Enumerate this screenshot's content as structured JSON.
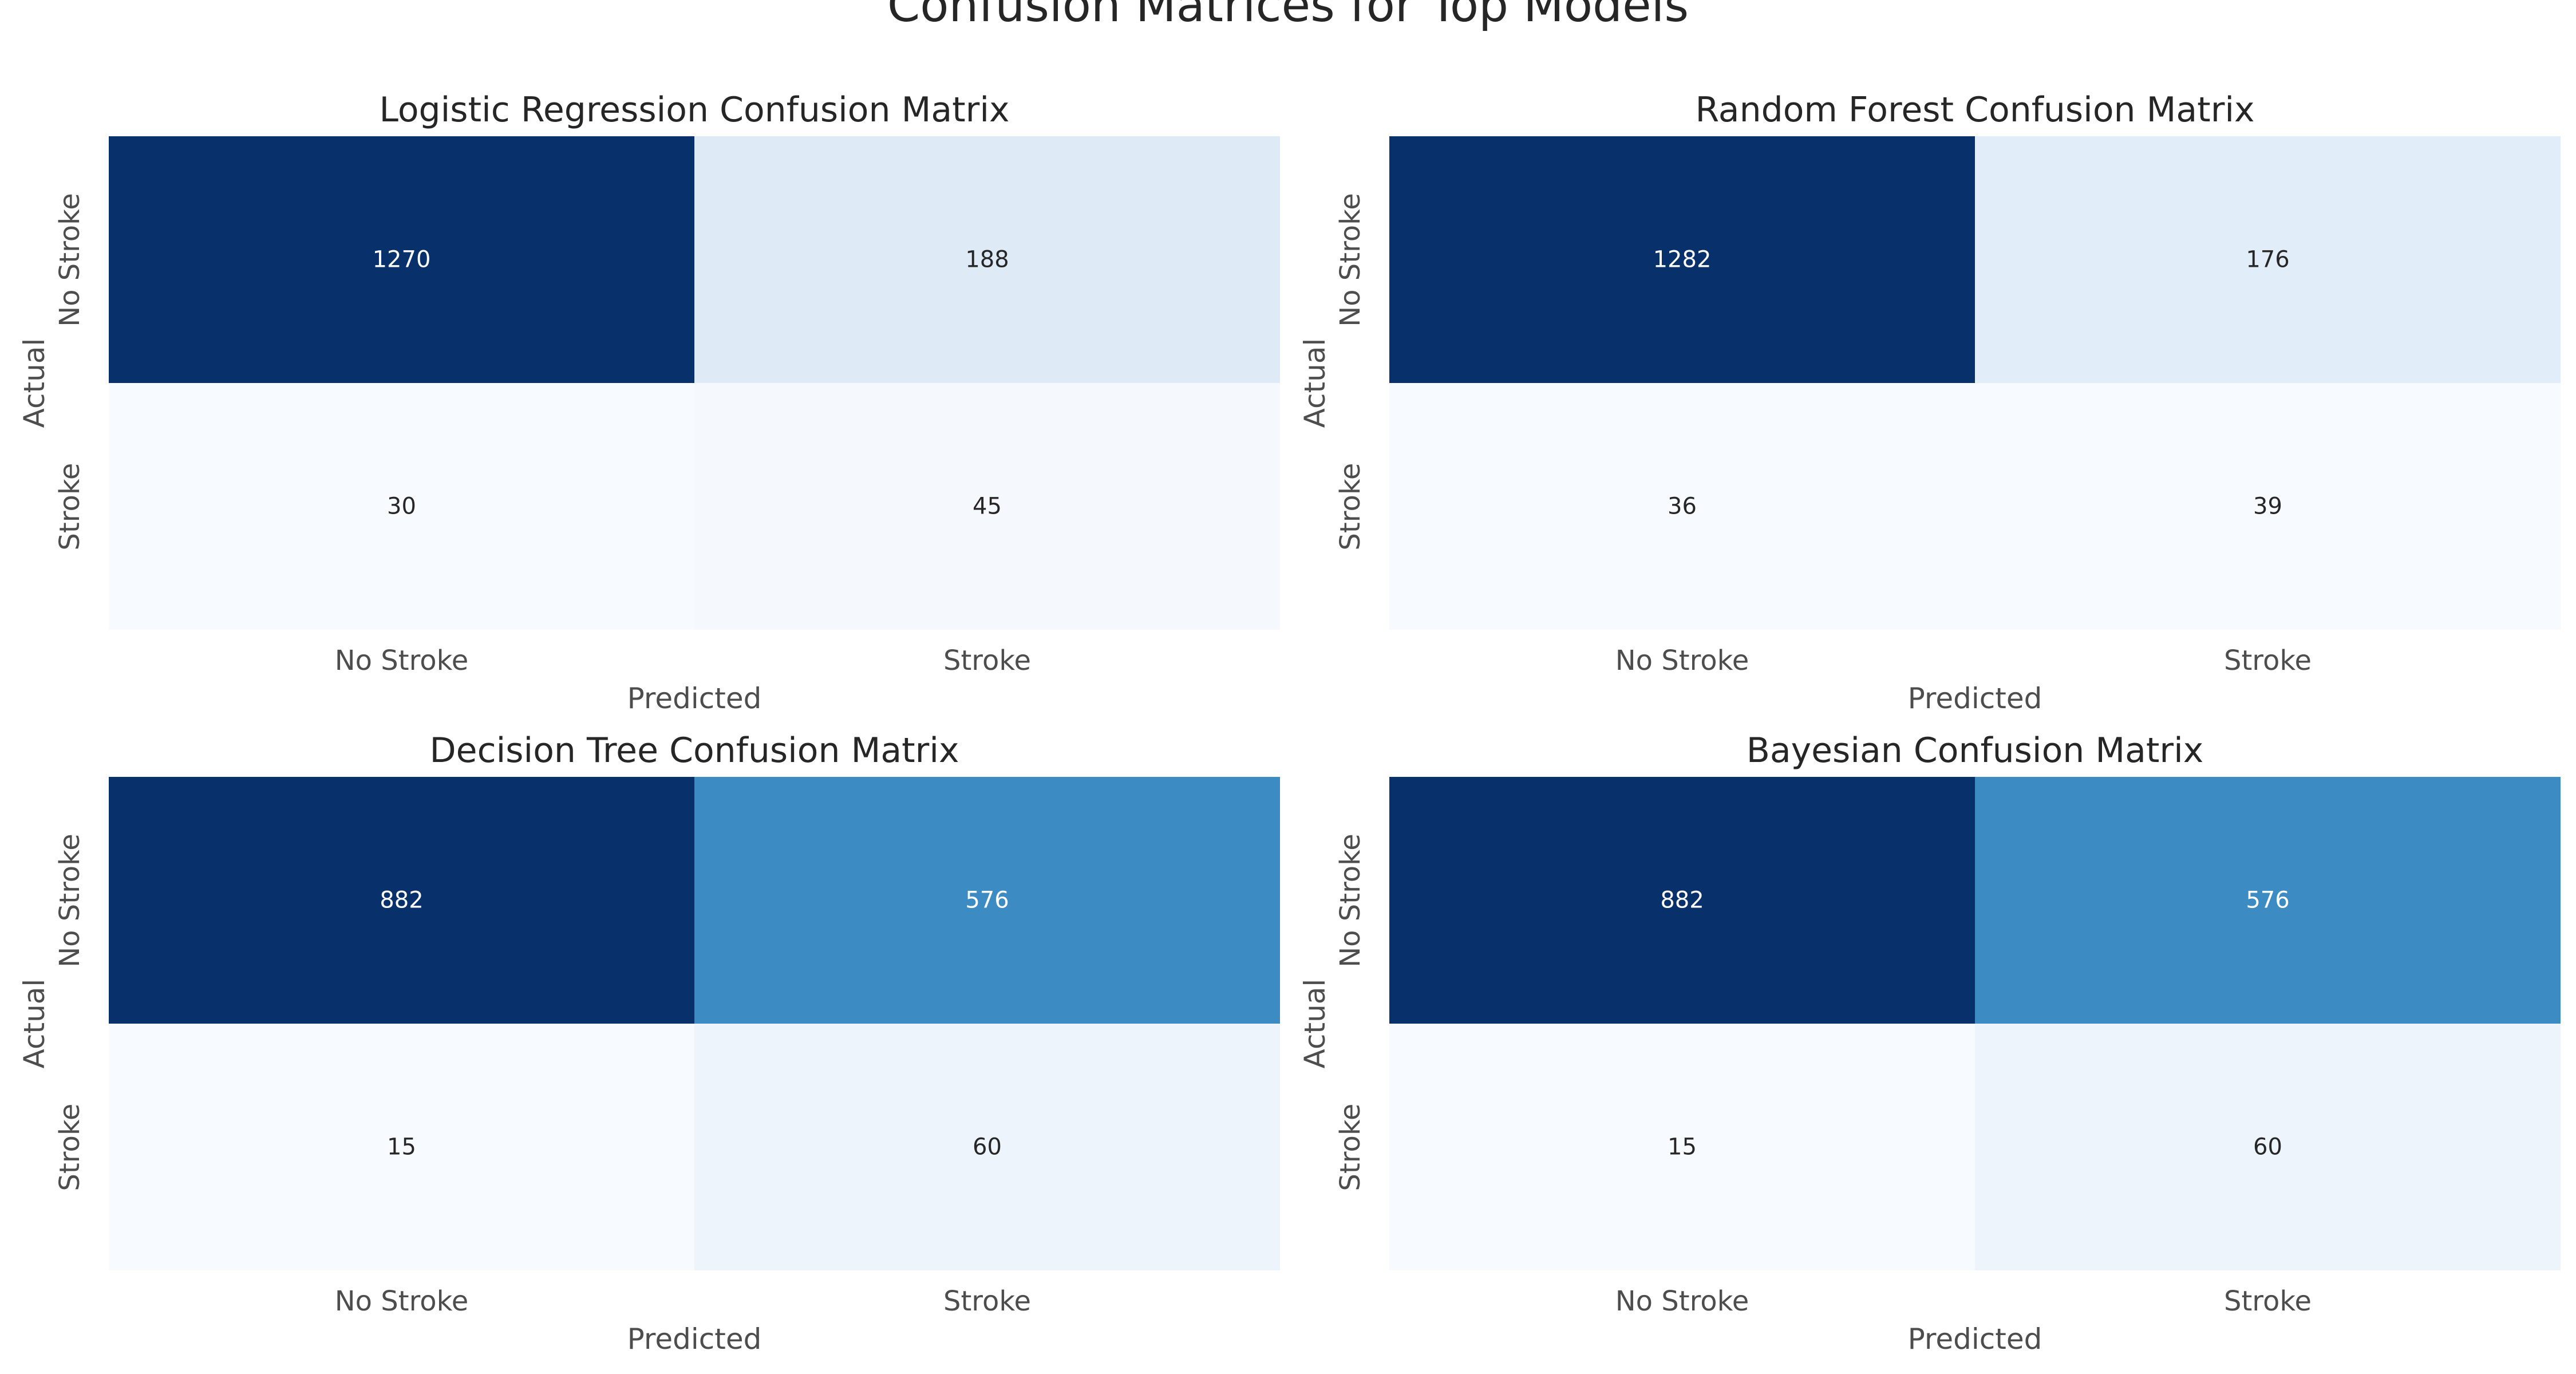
{
  "figure": {
    "suptitle": "Confusion Matrices for Top Models"
  },
  "chart_data": [
    {
      "type": "heatmap",
      "title": "Logistic Regression Confusion Matrix",
      "xlabel": "Predicted",
      "ylabel": "Actual",
      "x_ticks": [
        "No Stroke",
        "Stroke"
      ],
      "y_ticks": [
        "No Stroke",
        "Stroke"
      ],
      "values": [
        [
          1270,
          188
        ],
        [
          30,
          45
        ]
      ],
      "colormap": "Blues",
      "colorbar": false
    },
    {
      "type": "heatmap",
      "title": "Random Forest Confusion Matrix",
      "xlabel": "Predicted",
      "ylabel": "Actual",
      "x_ticks": [
        "No Stroke",
        "Stroke"
      ],
      "y_ticks": [
        "No Stroke",
        "Stroke"
      ],
      "values": [
        [
          1282,
          176
        ],
        [
          36,
          39
        ]
      ],
      "colormap": "Blues",
      "colorbar": false
    },
    {
      "type": "heatmap",
      "title": "Decision Tree Confusion Matrix",
      "xlabel": "Predicted",
      "ylabel": "Actual",
      "x_ticks": [
        "No Stroke",
        "Stroke"
      ],
      "y_ticks": [
        "No Stroke",
        "Stroke"
      ],
      "values": [
        [
          882,
          576
        ],
        [
          15,
          60
        ]
      ],
      "colormap": "Blues",
      "colorbar": false
    },
    {
      "type": "heatmap",
      "title": "Bayesian Confusion Matrix",
      "xlabel": "Predicted",
      "ylabel": "Actual",
      "x_ticks": [
        "No Stroke",
        "Stroke"
      ],
      "y_ticks": [
        "No Stroke",
        "Stroke"
      ],
      "values": [
        [
          882,
          576
        ],
        [
          15,
          60
        ]
      ],
      "colormap": "Blues",
      "colorbar": false
    }
  ]
}
